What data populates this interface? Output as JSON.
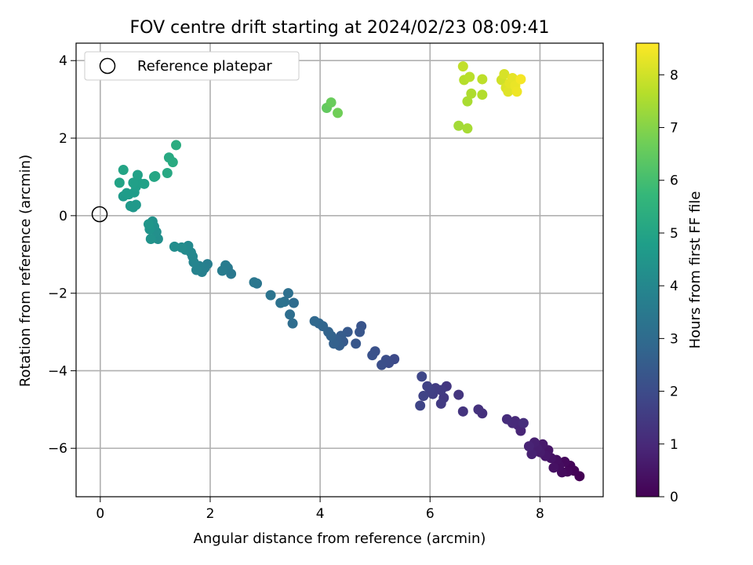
{
  "chart_data": {
    "type": "scatter",
    "title": "FOV centre drift starting at 2024/02/23 08:09:41",
    "xlabel": "Angular distance from reference (arcmin)",
    "ylabel": "Rotation from reference (arcmin)",
    "xlim": [
      -0.44,
      9.15
    ],
    "ylim": [
      -7.25,
      4.45
    ],
    "xticks": [
      0,
      2,
      4,
      6,
      8
    ],
    "xtick_labels": [
      "0",
      "2",
      "4",
      "6",
      "8"
    ],
    "yticks": [
      -6,
      -4,
      -2,
      0,
      2,
      4
    ],
    "ytick_labels": [
      "−6",
      "−4",
      "−2",
      "0",
      "2",
      "4"
    ],
    "grid": true,
    "legend": {
      "location": "top-left",
      "entries": [
        {
          "label": "Reference platepar",
          "marker": "open-circle"
        }
      ]
    },
    "reference_point": {
      "x": 0,
      "y": 0
    },
    "colorbar": {
      "label": "Hours from first FF file",
      "colormap": "viridis",
      "range": [
        0,
        8.6
      ],
      "ticks": [
        0,
        1,
        2,
        3,
        4,
        5,
        6,
        7,
        8
      ],
      "tick_labels": [
        "0",
        "1",
        "2",
        "3",
        "4",
        "5",
        "6",
        "7",
        "8"
      ]
    },
    "viridis": [
      "#440154",
      "#482878",
      "#3e4989",
      "#31688e",
      "#26828e",
      "#1f9e89",
      "#35b779",
      "#6ece58",
      "#b5de2b",
      "#fde725"
    ],
    "points": [
      {
        "x": 8.72,
        "y": -6.72,
        "t": 0.0
      },
      {
        "x": 8.62,
        "y": -6.58,
        "t": 0.05
      },
      {
        "x": 8.55,
        "y": -6.45,
        "t": 0.1
      },
      {
        "x": 8.5,
        "y": -6.6,
        "t": 0.15
      },
      {
        "x": 8.45,
        "y": -6.35,
        "t": 0.2
      },
      {
        "x": 8.4,
        "y": -6.62,
        "t": 0.25
      },
      {
        "x": 8.35,
        "y": -6.45,
        "t": 0.3
      },
      {
        "x": 8.3,
        "y": -6.3,
        "t": 0.35
      },
      {
        "x": 8.25,
        "y": -6.5,
        "t": 0.4
      },
      {
        "x": 8.2,
        "y": -6.25,
        "t": 0.45
      },
      {
        "x": 8.15,
        "y": -6.05,
        "t": 0.5
      },
      {
        "x": 8.1,
        "y": -6.2,
        "t": 0.55
      },
      {
        "x": 8.05,
        "y": -5.9,
        "t": 0.6
      },
      {
        "x": 8.0,
        "y": -6.1,
        "t": 0.65
      },
      {
        "x": 7.95,
        "y": -6.0,
        "t": 0.7
      },
      {
        "x": 7.9,
        "y": -5.85,
        "t": 0.75
      },
      {
        "x": 7.85,
        "y": -6.15,
        "t": 0.8
      },
      {
        "x": 7.8,
        "y": -5.95,
        "t": 0.85
      },
      {
        "x": 7.65,
        "y": -5.55,
        "t": 0.9
      },
      {
        "x": 7.6,
        "y": -5.4,
        "t": 0.95
      },
      {
        "x": 7.55,
        "y": -5.3,
        "t": 1.0
      },
      {
        "x": 7.5,
        "y": -5.35,
        "t": 1.05
      },
      {
        "x": 7.4,
        "y": -5.25,
        "t": 1.1
      },
      {
        "x": 7.7,
        "y": -5.35,
        "t": 1.12
      },
      {
        "x": 6.95,
        "y": -5.1,
        "t": 1.2
      },
      {
        "x": 6.88,
        "y": -5.0,
        "t": 1.25
      },
      {
        "x": 6.6,
        "y": -5.05,
        "t": 1.3
      },
      {
        "x": 6.52,
        "y": -4.62,
        "t": 1.35
      },
      {
        "x": 6.3,
        "y": -4.4,
        "t": 1.4
      },
      {
        "x": 6.25,
        "y": -4.7,
        "t": 1.45
      },
      {
        "x": 6.2,
        "y": -4.5,
        "t": 1.5
      },
      {
        "x": 6.2,
        "y": -4.85,
        "t": 1.52
      },
      {
        "x": 6.1,
        "y": -4.45,
        "t": 1.55
      },
      {
        "x": 6.05,
        "y": -4.6,
        "t": 1.6
      },
      {
        "x": 6.0,
        "y": -4.5,
        "t": 1.65
      },
      {
        "x": 5.95,
        "y": -4.4,
        "t": 1.7
      },
      {
        "x": 5.88,
        "y": -4.65,
        "t": 1.75
      },
      {
        "x": 5.82,
        "y": -4.9,
        "t": 1.8
      },
      {
        "x": 5.85,
        "y": -4.15,
        "t": 1.85
      },
      {
        "x": 5.35,
        "y": -3.7,
        "t": 1.95
      },
      {
        "x": 5.25,
        "y": -3.8,
        "t": 2.0
      },
      {
        "x": 5.2,
        "y": -3.72,
        "t": 2.05
      },
      {
        "x": 5.12,
        "y": -3.85,
        "t": 2.1
      },
      {
        "x": 5.0,
        "y": -3.5,
        "t": 2.15
      },
      {
        "x": 4.95,
        "y": -3.6,
        "t": 2.2
      },
      {
        "x": 4.75,
        "y": -2.85,
        "t": 2.25
      },
      {
        "x": 4.72,
        "y": -3.0,
        "t": 2.3
      },
      {
        "x": 4.65,
        "y": -3.3,
        "t": 2.35
      },
      {
        "x": 4.5,
        "y": -3.0,
        "t": 2.4
      },
      {
        "x": 4.42,
        "y": -3.25,
        "t": 2.45
      },
      {
        "x": 4.38,
        "y": -3.1,
        "t": 2.5
      },
      {
        "x": 4.35,
        "y": -3.35,
        "t": 2.55
      },
      {
        "x": 4.3,
        "y": -3.2,
        "t": 2.6
      },
      {
        "x": 4.25,
        "y": -3.3,
        "t": 2.65
      },
      {
        "x": 4.2,
        "y": -3.1,
        "t": 2.7
      },
      {
        "x": 4.15,
        "y": -3.0,
        "t": 2.75
      },
      {
        "x": 4.05,
        "y": -2.85,
        "t": 2.8
      },
      {
        "x": 3.98,
        "y": -2.78,
        "t": 2.85
      },
      {
        "x": 3.9,
        "y": -2.72,
        "t": 2.9
      },
      {
        "x": 3.52,
        "y": -2.25,
        "t": 3.0
      },
      {
        "x": 3.5,
        "y": -2.78,
        "t": 3.05
      },
      {
        "x": 3.45,
        "y": -2.55,
        "t": 3.1
      },
      {
        "x": 3.42,
        "y": -2.0,
        "t": 3.15
      },
      {
        "x": 3.35,
        "y": -2.22,
        "t": 3.2
      },
      {
        "x": 3.28,
        "y": -2.25,
        "t": 3.25
      },
      {
        "x": 3.1,
        "y": -2.05,
        "t": 3.3
      },
      {
        "x": 2.85,
        "y": -1.75,
        "t": 3.35
      },
      {
        "x": 2.8,
        "y": -1.72,
        "t": 3.4
      },
      {
        "x": 2.38,
        "y": -1.5,
        "t": 3.45
      },
      {
        "x": 2.32,
        "y": -1.35,
        "t": 3.5
      },
      {
        "x": 2.28,
        "y": -1.28,
        "t": 3.55
      },
      {
        "x": 2.22,
        "y": -1.42,
        "t": 3.6
      },
      {
        "x": 1.95,
        "y": -1.25,
        "t": 3.65
      },
      {
        "x": 1.9,
        "y": -1.35,
        "t": 3.7
      },
      {
        "x": 1.85,
        "y": -1.45,
        "t": 3.75
      },
      {
        "x": 1.8,
        "y": -1.3,
        "t": 3.8
      },
      {
        "x": 1.75,
        "y": -1.4,
        "t": 3.85
      },
      {
        "x": 1.7,
        "y": -1.2,
        "t": 3.9
      },
      {
        "x": 1.68,
        "y": -1.05,
        "t": 3.95
      },
      {
        "x": 1.65,
        "y": -0.95,
        "t": 4.0
      },
      {
        "x": 1.6,
        "y": -0.78,
        "t": 4.05
      },
      {
        "x": 1.55,
        "y": -0.88,
        "t": 4.1
      },
      {
        "x": 1.48,
        "y": -0.82,
        "t": 4.15
      },
      {
        "x": 1.35,
        "y": -0.8,
        "t": 4.2
      },
      {
        "x": 1.05,
        "y": -0.6,
        "t": 4.25
      },
      {
        "x": 1.02,
        "y": -0.42,
        "t": 4.3
      },
      {
        "x": 0.98,
        "y": -0.28,
        "t": 4.35
      },
      {
        "x": 0.95,
        "y": -0.15,
        "t": 4.38
      },
      {
        "x": 0.92,
        "y": -0.6,
        "t": 4.4
      },
      {
        "x": 0.9,
        "y": -0.35,
        "t": 4.45
      },
      {
        "x": 0.88,
        "y": -0.22,
        "t": 4.5
      },
      {
        "x": 0.6,
        "y": 0.22,
        "t": 4.55
      },
      {
        "x": 0.65,
        "y": 0.28,
        "t": 4.6
      },
      {
        "x": 0.55,
        "y": 0.25,
        "t": 4.62
      },
      {
        "x": 0.42,
        "y": 0.5,
        "t": 4.65
      },
      {
        "x": 0.48,
        "y": 0.58,
        "t": 4.7
      },
      {
        "x": 0.52,
        "y": 0.55,
        "t": 4.72
      },
      {
        "x": 0.62,
        "y": 0.6,
        "t": 4.75
      },
      {
        "x": 0.65,
        "y": 0.75,
        "t": 4.8
      },
      {
        "x": 0.7,
        "y": 0.85,
        "t": 4.82
      },
      {
        "x": 0.6,
        "y": 0.85,
        "t": 4.85
      },
      {
        "x": 0.8,
        "y": 0.82,
        "t": 4.88
      },
      {
        "x": 0.68,
        "y": 1.05,
        "t": 4.9
      },
      {
        "x": 0.35,
        "y": 0.85,
        "t": 4.95
      },
      {
        "x": 0.42,
        "y": 1.18,
        "t": 5.0
      },
      {
        "x": 0.98,
        "y": 1.0,
        "t": 5.05
      },
      {
        "x": 1.0,
        "y": 1.02,
        "t": 5.1
      },
      {
        "x": 1.22,
        "y": 1.1,
        "t": 5.15
      },
      {
        "x": 1.25,
        "y": 1.5,
        "t": 5.2
      },
      {
        "x": 1.32,
        "y": 1.38,
        "t": 5.25
      },
      {
        "x": 1.38,
        "y": 1.82,
        "t": 5.3
      },
      {
        "x": 4.12,
        "y": 2.78,
        "t": 6.5
      },
      {
        "x": 4.2,
        "y": 2.92,
        "t": 6.6
      },
      {
        "x": 4.32,
        "y": 2.65,
        "t": 6.7
      },
      {
        "x": 6.52,
        "y": 2.32,
        "t": 7.4
      },
      {
        "x": 6.68,
        "y": 2.25,
        "t": 7.45
      },
      {
        "x": 6.68,
        "y": 2.95,
        "t": 7.5
      },
      {
        "x": 6.75,
        "y": 3.15,
        "t": 7.55
      },
      {
        "x": 6.95,
        "y": 3.12,
        "t": 7.6
      },
      {
        "x": 6.62,
        "y": 3.5,
        "t": 7.65
      },
      {
        "x": 6.72,
        "y": 3.58,
        "t": 7.7
      },
      {
        "x": 6.95,
        "y": 3.52,
        "t": 7.75
      },
      {
        "x": 6.6,
        "y": 3.85,
        "t": 7.8
      },
      {
        "x": 7.3,
        "y": 3.5,
        "t": 8.0
      },
      {
        "x": 7.35,
        "y": 3.65,
        "t": 8.1
      },
      {
        "x": 7.38,
        "y": 3.3,
        "t": 8.15
      },
      {
        "x": 7.42,
        "y": 3.2,
        "t": 8.2
      },
      {
        "x": 7.45,
        "y": 3.42,
        "t": 8.25
      },
      {
        "x": 7.5,
        "y": 3.55,
        "t": 8.3
      },
      {
        "x": 7.55,
        "y": 3.35,
        "t": 8.35
      },
      {
        "x": 7.58,
        "y": 3.2,
        "t": 8.4
      },
      {
        "x": 7.65,
        "y": 3.52,
        "t": 8.5
      }
    ]
  }
}
